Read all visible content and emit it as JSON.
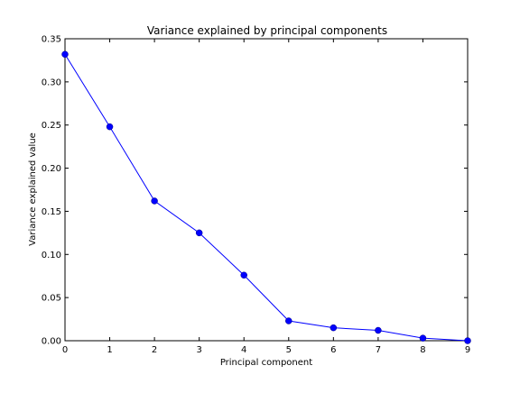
{
  "chart_data": {
    "type": "line",
    "title": "Variance explained by principal components",
    "xlabel": "Principal component",
    "ylabel": "Variance explained value",
    "xlim": [
      0,
      9
    ],
    "ylim": [
      0,
      0.35
    ],
    "x_ticks": [
      "0",
      "1",
      "2",
      "3",
      "4",
      "5",
      "6",
      "7",
      "8",
      "9"
    ],
    "y_ticks": [
      "0.00",
      "0.05",
      "0.10",
      "0.15",
      "0.20",
      "0.25",
      "0.30",
      "0.35"
    ],
    "grid": false,
    "series": [
      {
        "color": "#0000ff",
        "marker": "circle",
        "x": [
          0,
          1,
          2,
          3,
          4,
          5,
          6,
          7,
          8,
          9
        ],
        "values": [
          0.332,
          0.248,
          0.162,
          0.125,
          0.076,
          0.023,
          0.015,
          0.012,
          0.003,
          0.0
        ]
      }
    ]
  }
}
